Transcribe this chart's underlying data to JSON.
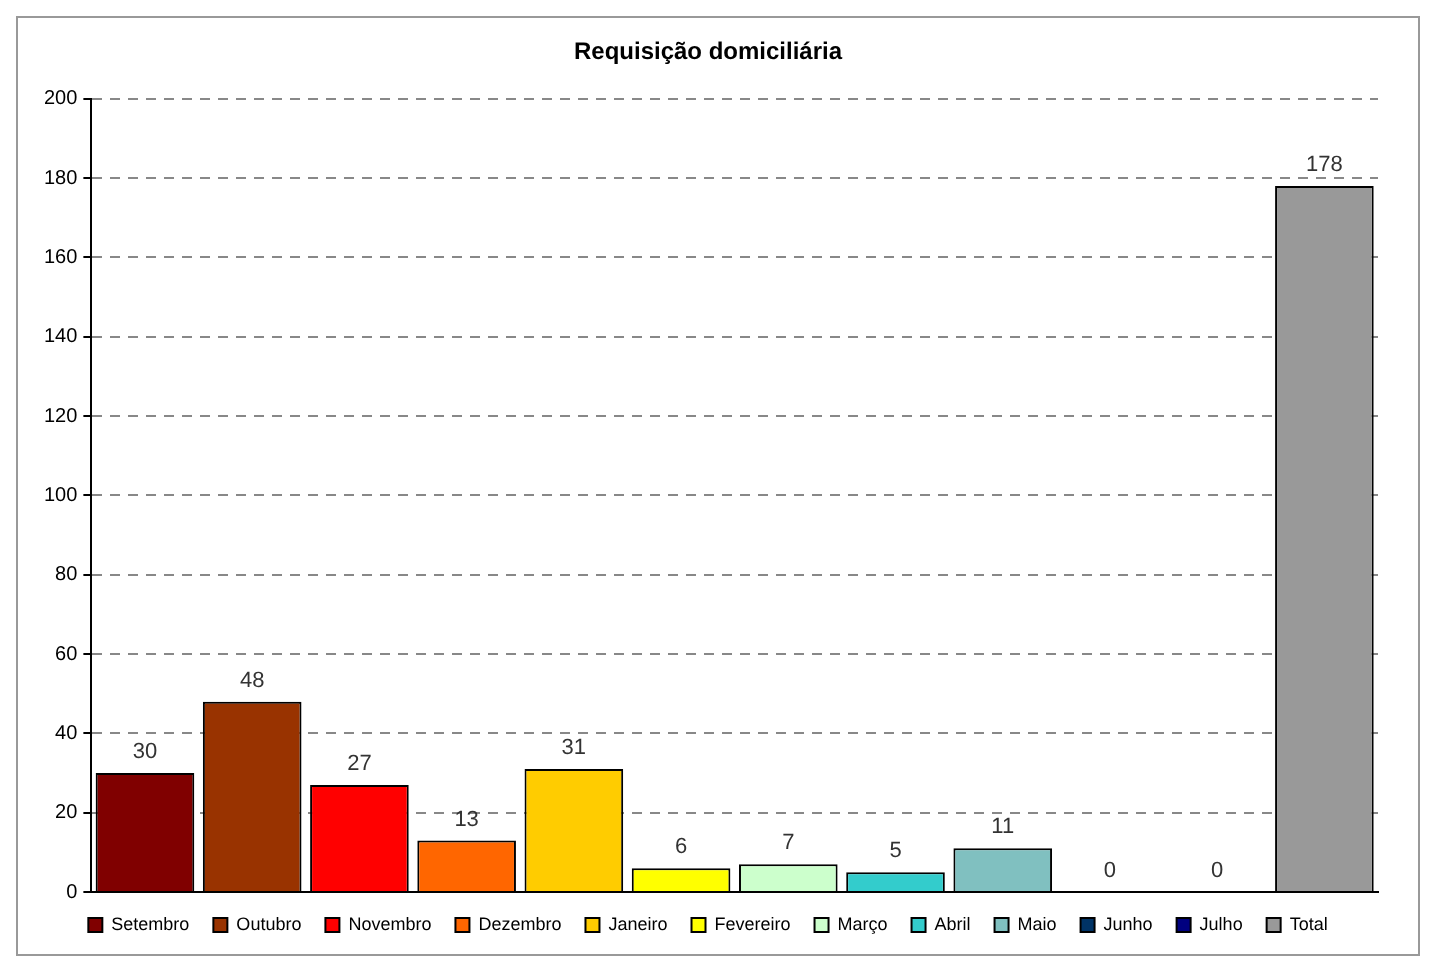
{
  "chart_data": {
    "type": "bar",
    "title": "Requisição domiciliária",
    "categories": [
      null,
      null,
      null,
      null,
      null,
      null,
      null,
      null,
      null,
      null,
      null,
      null
    ],
    "series": [
      {
        "name": "Setembro",
        "color": "#800000",
        "values": [
          30,
          null,
          null,
          null,
          null,
          null,
          null,
          null,
          null,
          null,
          null,
          null
        ]
      },
      {
        "name": "Outubro",
        "color": "#993300",
        "values": [
          null,
          48,
          null,
          null,
          null,
          null,
          null,
          null,
          null,
          null,
          null,
          null
        ]
      },
      {
        "name": "Novembro",
        "color": "#ff0000",
        "values": [
          null,
          null,
          27,
          null,
          null,
          null,
          null,
          null,
          null,
          null,
          null,
          null
        ]
      },
      {
        "name": "Dezembro",
        "color": "#ff6600",
        "values": [
          null,
          null,
          null,
          13,
          null,
          null,
          null,
          null,
          null,
          null,
          null,
          null
        ]
      },
      {
        "name": "Janeiro",
        "color": "#ffcc00",
        "values": [
          null,
          null,
          null,
          null,
          31,
          null,
          null,
          null,
          null,
          null,
          null,
          null
        ]
      },
      {
        "name": "Fevereiro",
        "color": "#ffff00",
        "values": [
          null,
          null,
          null,
          null,
          null,
          6,
          null,
          null,
          null,
          null,
          null,
          null
        ]
      },
      {
        "name": "Março",
        "color": "#ccffcc",
        "values": [
          null,
          null,
          null,
          null,
          null,
          null,
          7,
          null,
          null,
          null,
          null,
          null
        ]
      },
      {
        "name": "Abril",
        "color": "#33cccc",
        "values": [
          null,
          null,
          null,
          null,
          null,
          null,
          null,
          5,
          null,
          null,
          null,
          null
        ]
      },
      {
        "name": "Maio",
        "color": "#80c0c0",
        "values": [
          null,
          null,
          null,
          null,
          null,
          null,
          null,
          null,
          11,
          null,
          null,
          null
        ]
      },
      {
        "name": "Junho",
        "color": "#003366",
        "values": [
          null,
          null,
          null,
          null,
          null,
          null,
          null,
          null,
          null,
          0,
          null,
          null
        ]
      },
      {
        "name": "Julho",
        "color": "#000080",
        "values": [
          null,
          null,
          null,
          null,
          null,
          null,
          null,
          null,
          null,
          null,
          0,
          null
        ]
      },
      {
        "name": "Total",
        "color": "#999999",
        "values": [
          null,
          null,
          null,
          null,
          null,
          null,
          null,
          null,
          null,
          null,
          null,
          178
        ]
      }
    ],
    "ylim": [
      0,
      200
    ],
    "yticks": [
      0,
      20,
      40,
      60,
      80,
      100,
      120,
      140,
      160,
      180,
      200
    ],
    "grid": "y",
    "legend": "bottom",
    "data_labels": true
  }
}
